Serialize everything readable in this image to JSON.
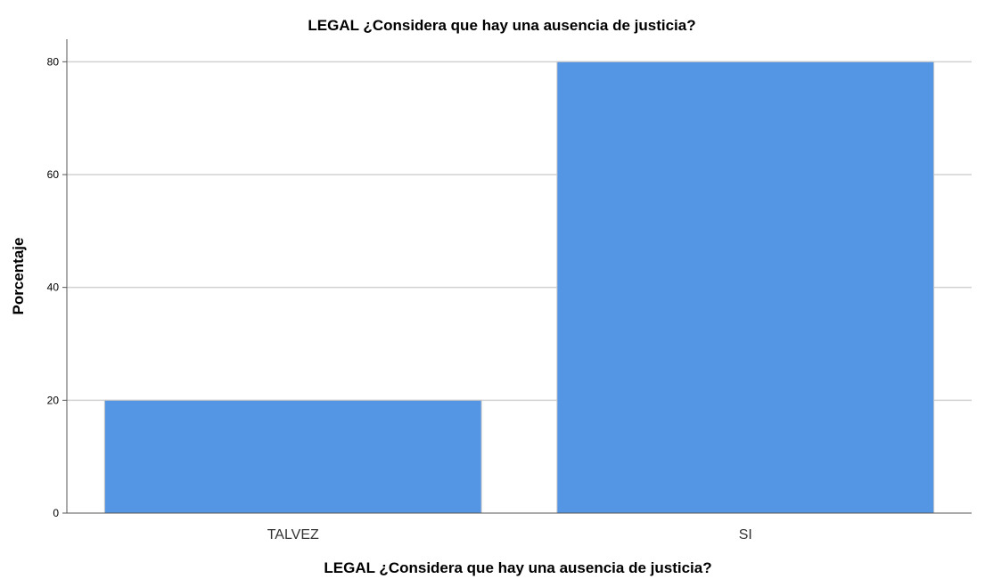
{
  "chart_data": {
    "type": "bar",
    "title": "LEGAL ¿Considera que hay una ausencia de justicia?",
    "xlabel": "LEGAL ¿Considera que hay una ausencia de justicia?",
    "ylabel": "Porcentaje",
    "categories": [
      "TALVEZ",
      "SI"
    ],
    "values": [
      20,
      80
    ],
    "ylim": [
      0,
      84
    ],
    "yticks": [
      "0",
      "20",
      "40",
      "60",
      "80"
    ],
    "grid": true,
    "bar_color": "#5596e4"
  }
}
